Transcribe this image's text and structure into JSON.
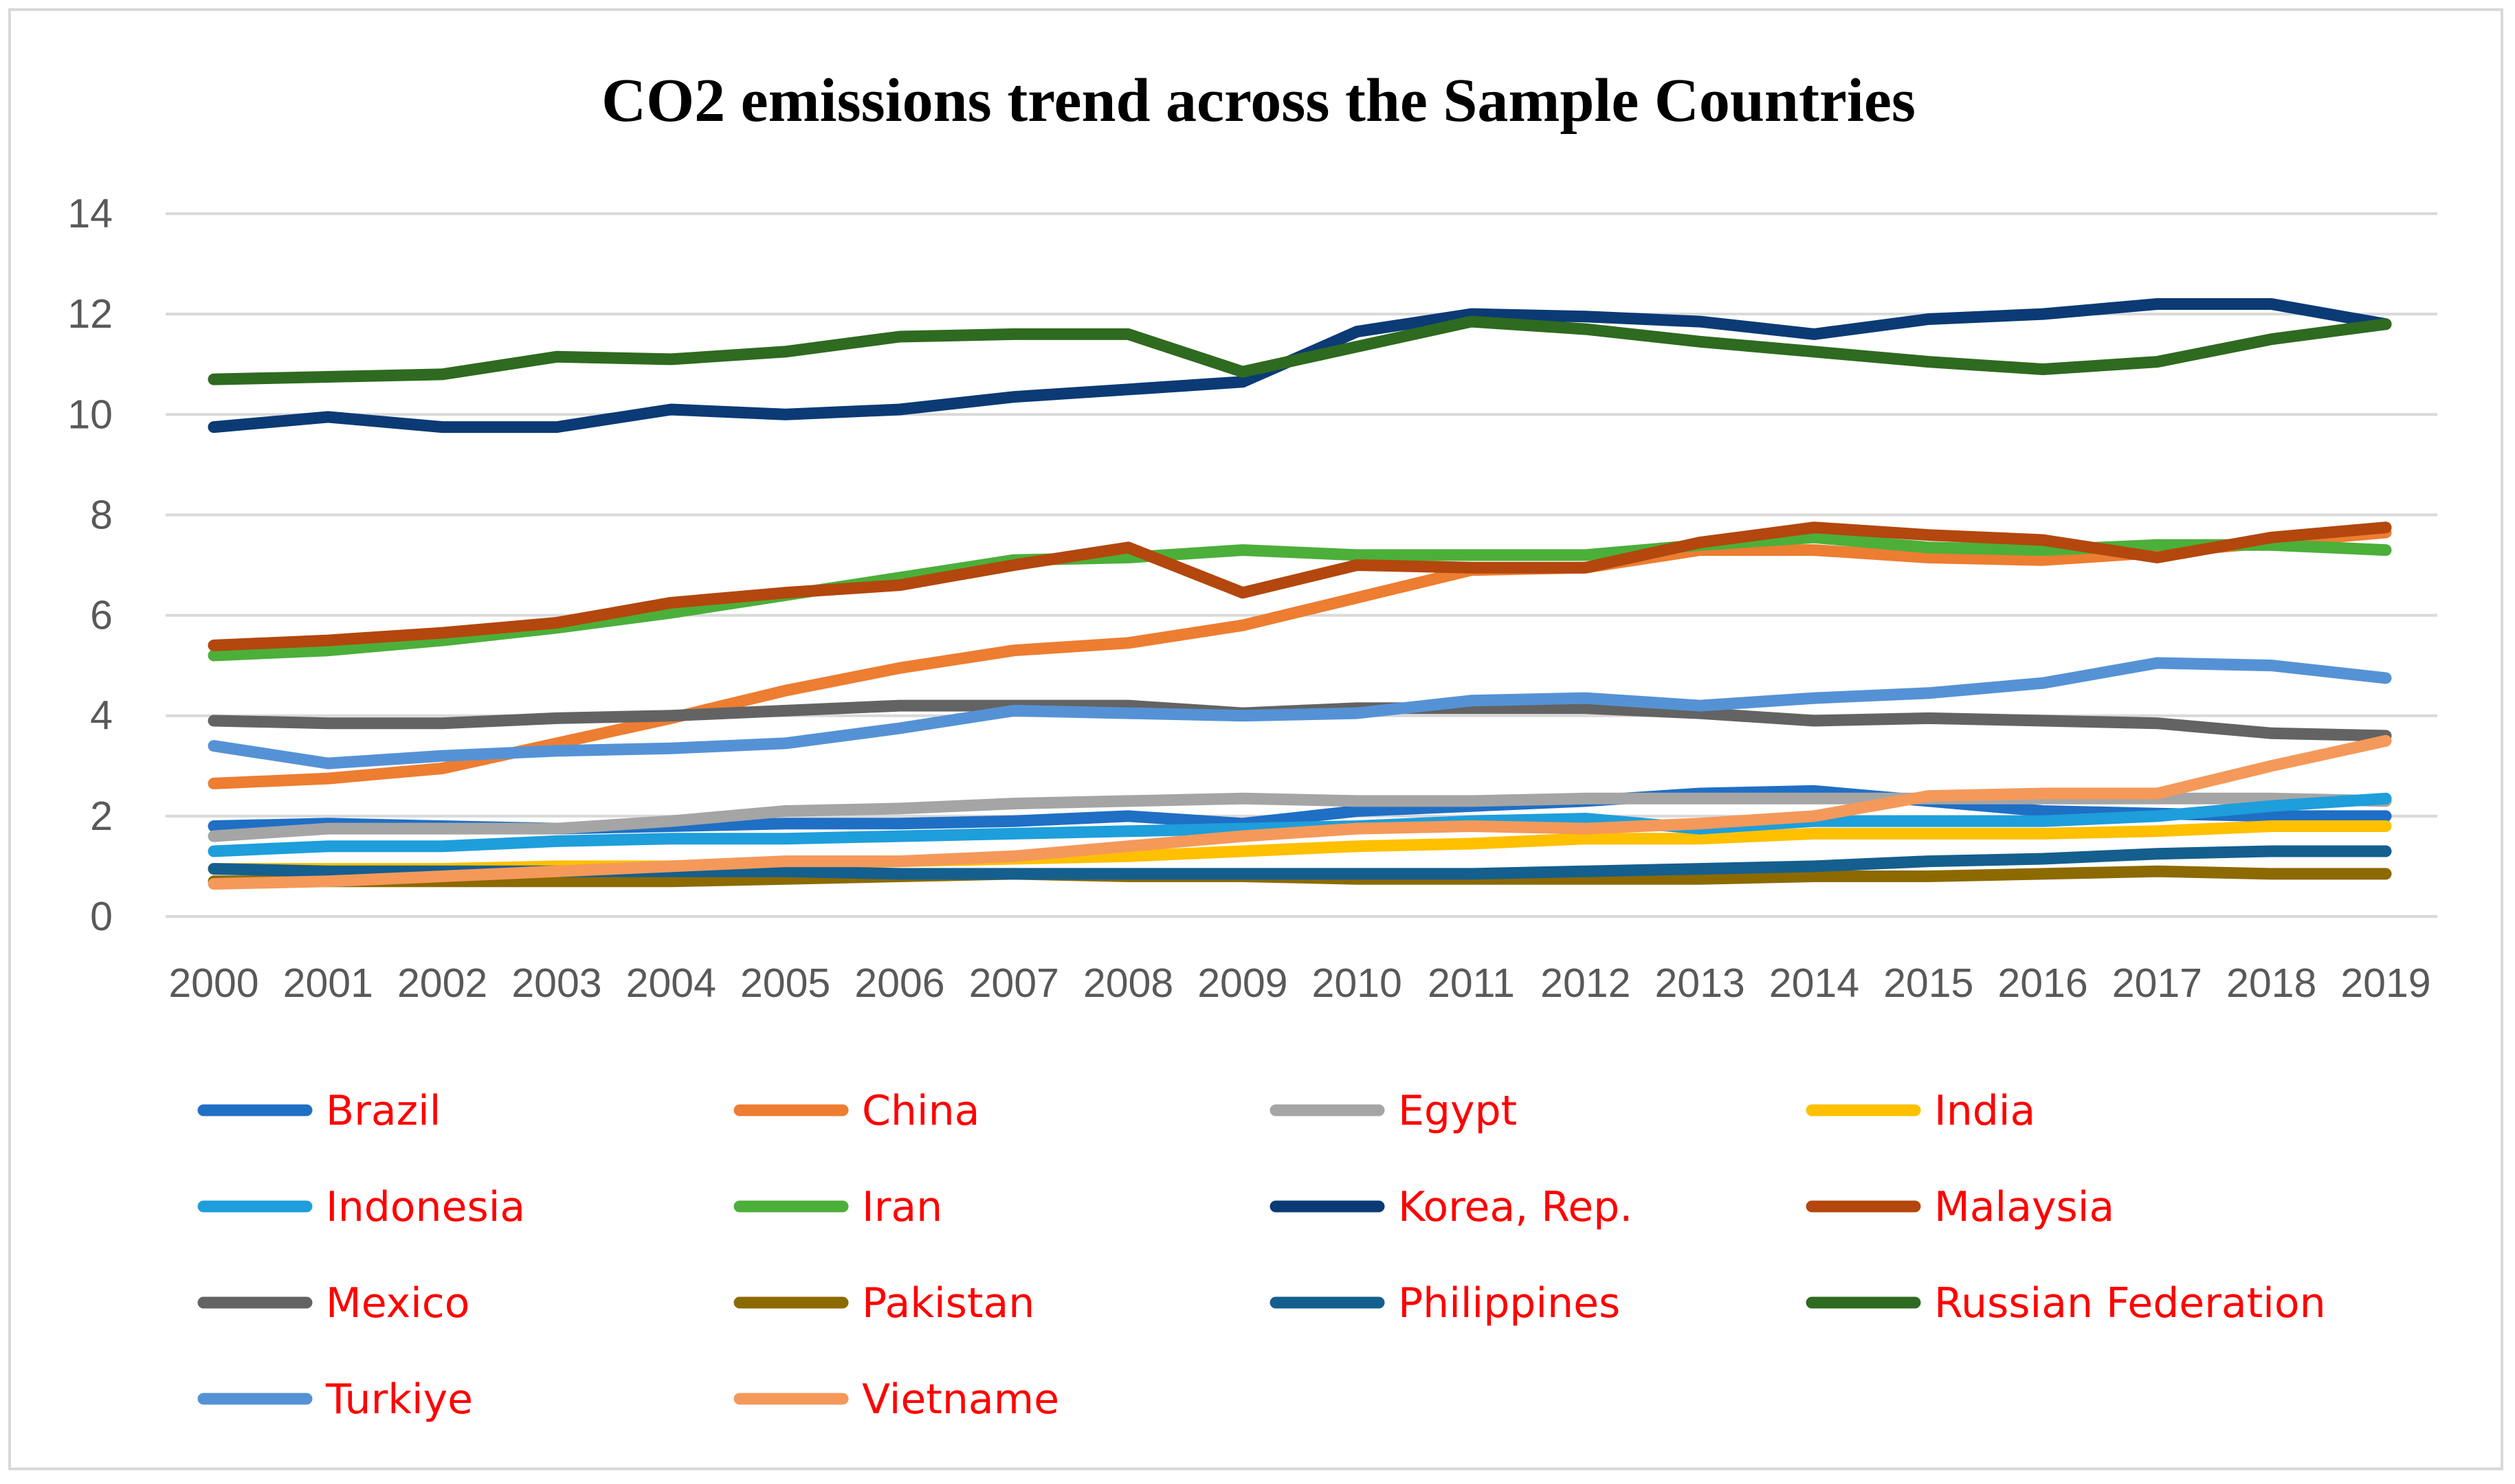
{
  "chart_data": {
    "type": "line",
    "title": "CO2 emissions trend across the Sample Countries",
    "xlabel": "",
    "ylabel": "",
    "ylim": [
      0,
      14
    ],
    "yticks": [
      0,
      2,
      4,
      6,
      8,
      10,
      12,
      14
    ],
    "grid": "horizontal",
    "legend_position": "bottom",
    "categories": [
      "2000",
      "2001",
      "2002",
      "2003",
      "2004",
      "2005",
      "2006",
      "2007",
      "2008",
      "2009",
      "2010",
      "2011",
      "2012",
      "2013",
      "2014",
      "2015",
      "2016",
      "2017",
      "2018",
      "2019"
    ],
    "series": [
      {
        "name": "Brazil",
        "color": "#1f6fc5",
        "values": [
          1.8,
          1.85,
          1.8,
          1.75,
          1.8,
          1.85,
          1.85,
          1.9,
          2.0,
          1.85,
          2.1,
          2.2,
          2.3,
          2.45,
          2.5,
          2.3,
          2.1,
          2.05,
          2.0,
          2.0
        ]
      },
      {
        "name": "China",
        "color": "#ed7d31",
        "values": [
          2.65,
          2.75,
          2.95,
          3.45,
          3.95,
          4.5,
          4.95,
          5.3,
          5.45,
          5.8,
          6.35,
          6.9,
          6.95,
          7.3,
          7.3,
          7.15,
          7.1,
          7.25,
          7.45,
          7.65
        ]
      },
      {
        "name": "Egypt",
        "color": "#a5a5a5",
        "values": [
          1.6,
          1.75,
          1.75,
          1.75,
          1.9,
          2.1,
          2.15,
          2.25,
          2.3,
          2.35,
          2.3,
          2.3,
          2.35,
          2.35,
          2.35,
          2.35,
          2.35,
          2.35,
          2.35,
          2.3
        ]
      },
      {
        "name": "India",
        "color": "#ffc000",
        "values": [
          0.95,
          0.95,
          0.95,
          1.0,
          1.0,
          1.05,
          1.1,
          1.15,
          1.2,
          1.3,
          1.4,
          1.45,
          1.55,
          1.55,
          1.65,
          1.65,
          1.65,
          1.7,
          1.8,
          1.8
        ]
      },
      {
        "name": "Indonesia",
        "color": "#1e9edb",
        "values": [
          1.3,
          1.4,
          1.4,
          1.5,
          1.55,
          1.55,
          1.6,
          1.65,
          1.7,
          1.75,
          1.8,
          1.9,
          1.95,
          1.75,
          1.9,
          1.9,
          1.9,
          2.0,
          2.2,
          2.35
        ]
      },
      {
        "name": "Iran",
        "color": "#4caf3a",
        "values": [
          5.2,
          5.3,
          5.5,
          5.75,
          6.05,
          6.4,
          6.75,
          7.1,
          7.15,
          7.3,
          7.2,
          7.2,
          7.2,
          7.4,
          7.55,
          7.35,
          7.3,
          7.4,
          7.4,
          7.3
        ]
      },
      {
        "name": "Korea, Rep.",
        "color": "#0b3a75",
        "values": [
          9.75,
          9.95,
          9.75,
          9.75,
          10.1,
          10.0,
          10.1,
          10.35,
          10.5,
          10.65,
          11.65,
          12.0,
          11.95,
          11.85,
          11.6,
          11.9,
          12.0,
          12.2,
          12.2,
          11.8
        ]
      },
      {
        "name": "Malaysia",
        "color": "#b3470e",
        "values": [
          5.4,
          5.5,
          5.65,
          5.85,
          6.25,
          6.45,
          6.6,
          7.0,
          7.35,
          6.45,
          7.0,
          6.95,
          6.95,
          7.45,
          7.75,
          7.6,
          7.5,
          7.15,
          7.55,
          7.75
        ]
      },
      {
        "name": "Mexico",
        "color": "#636363",
        "values": [
          3.9,
          3.85,
          3.85,
          3.95,
          4.0,
          4.1,
          4.2,
          4.2,
          4.2,
          4.05,
          4.15,
          4.15,
          4.15,
          4.05,
          3.9,
          3.95,
          3.9,
          3.85,
          3.65,
          3.6
        ]
      },
      {
        "name": "Pakistan",
        "color": "#8c6a00",
        "values": [
          0.7,
          0.7,
          0.7,
          0.7,
          0.7,
          0.75,
          0.8,
          0.85,
          0.8,
          0.8,
          0.75,
          0.75,
          0.75,
          0.75,
          0.8,
          0.8,
          0.85,
          0.9,
          0.85,
          0.85
        ]
      },
      {
        "name": "Philippines",
        "color": "#145f8e",
        "values": [
          0.95,
          0.9,
          0.9,
          0.9,
          0.9,
          0.9,
          0.85,
          0.85,
          0.85,
          0.85,
          0.85,
          0.85,
          0.9,
          0.95,
          1.0,
          1.1,
          1.15,
          1.25,
          1.3,
          1.3
        ]
      },
      {
        "name": "Russian Federation",
        "color": "#2e6a1f",
        "values": [
          10.7,
          10.75,
          10.8,
          11.15,
          11.1,
          11.25,
          11.55,
          11.6,
          11.6,
          10.85,
          11.35,
          11.85,
          11.7,
          11.45,
          11.25,
          11.05,
          10.9,
          11.05,
          11.5,
          11.8
        ]
      },
      {
        "name": "Turkiye",
        "color": "#5592d5",
        "values": [
          3.4,
          3.05,
          3.2,
          3.3,
          3.35,
          3.45,
          3.75,
          4.1,
          4.05,
          4.0,
          4.05,
          4.3,
          4.35,
          4.2,
          4.35,
          4.45,
          4.65,
          5.05,
          5.0,
          4.75
        ]
      },
      {
        "name": "Vietname",
        "color": "#f4995a",
        "values": [
          0.65,
          0.7,
          0.8,
          0.9,
          1.0,
          1.1,
          1.1,
          1.2,
          1.4,
          1.6,
          1.75,
          1.8,
          1.75,
          1.85,
          2.0,
          2.4,
          2.45,
          2.45,
          3.0,
          3.5
        ]
      }
    ]
  }
}
